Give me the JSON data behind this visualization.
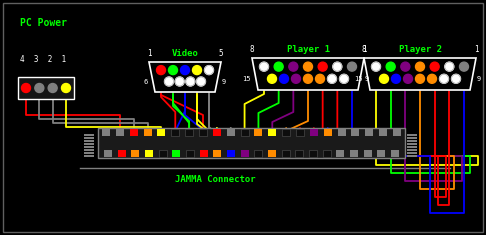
{
  "bg": "#000000",
  "green": "#00ff00",
  "white": "#ffffff",
  "gray": "#808080",
  "pc_power_label": "PC Power",
  "pc_power_pins": "4 3 2 1",
  "pc_pin_colors": [
    "#ff0000",
    "#808080",
    "#808080",
    "#ffff00"
  ],
  "video_label": "Video",
  "video_top": [
    "#ff0000",
    "#00ff00",
    "#0000ff",
    "#ffff00",
    "#ffffff"
  ],
  "video_bot": [
    "#ffffff",
    "#ffffff",
    "#ffffff",
    "#ffffff"
  ],
  "p1_label": "Player 1",
  "p1_top": [
    "#ffffff",
    "#00ff00",
    "#800080",
    "#ff8c00",
    "#ff0000",
    "#ffffff",
    "#808080"
  ],
  "p1_bot": [
    "#ffff00",
    "#0000ff",
    "#800080",
    "#ff8c00",
    "#ff8c00",
    "#ffffff",
    "#ffffff"
  ],
  "p2_label": "Player 2",
  "p2_top": [
    "#ffffff",
    "#00ff00",
    "#800080",
    "#ff8c00",
    "#ff0000",
    "#ffffff",
    "#808080"
  ],
  "p2_bot": [
    "#ffff00",
    "#0000ff",
    "#800080",
    "#ff8c00",
    "#ff8c00",
    "#ffffff",
    "#ffffff"
  ],
  "jamma_label": "JAMMA Connector",
  "jamma_top_colors": [
    "#808080",
    "#808080",
    "#ff0000",
    "#ff8c00",
    "#ffff00",
    "#000000",
    "#000000",
    "#000000",
    "#ff0000",
    "#808080",
    "#000000",
    "#ff8c00",
    "#ffff00",
    "#000000",
    "#000000",
    "#800080",
    "#ff8c00",
    "#808080",
    "#808080",
    "#808080",
    "#808080",
    "#808080"
  ],
  "jamma_bot_colors": [
    "#808080",
    "#ff0000",
    "#ff8c00",
    "#ffff00",
    "#000000",
    "#00ff00",
    "#000000",
    "#ff0000",
    "#ff8c00",
    "#0000ff",
    "#800080",
    "#000000",
    "#ff8c00",
    "#000000",
    "#000000",
    "#000000",
    "#000000",
    "#808080",
    "#808080",
    "#808080",
    "#808080",
    "#808080"
  ],
  "vid_wire_colors": [
    "#ff0000",
    "#00ff00",
    "#0000ff",
    "#ffff00",
    "#808080"
  ],
  "p1_wire_colors": [
    "#ffff00",
    "#00ff00",
    "#800080",
    "#ff8c00",
    "#ff0000",
    "#ff0000",
    "#0000ff",
    "#800080",
    "#ff8c00",
    "#808080"
  ],
  "p2_wire_colors": [
    "#ffff00",
    "#00ff00",
    "#800080",
    "#ff8c00",
    "#ff0000",
    "#ff0000",
    "#0000ff",
    "#800080",
    "#ff8c00",
    "#808080"
  ],
  "pw_wire_colors": [
    "#ff0000",
    "#808080",
    "#808080",
    "#ffff00"
  ]
}
